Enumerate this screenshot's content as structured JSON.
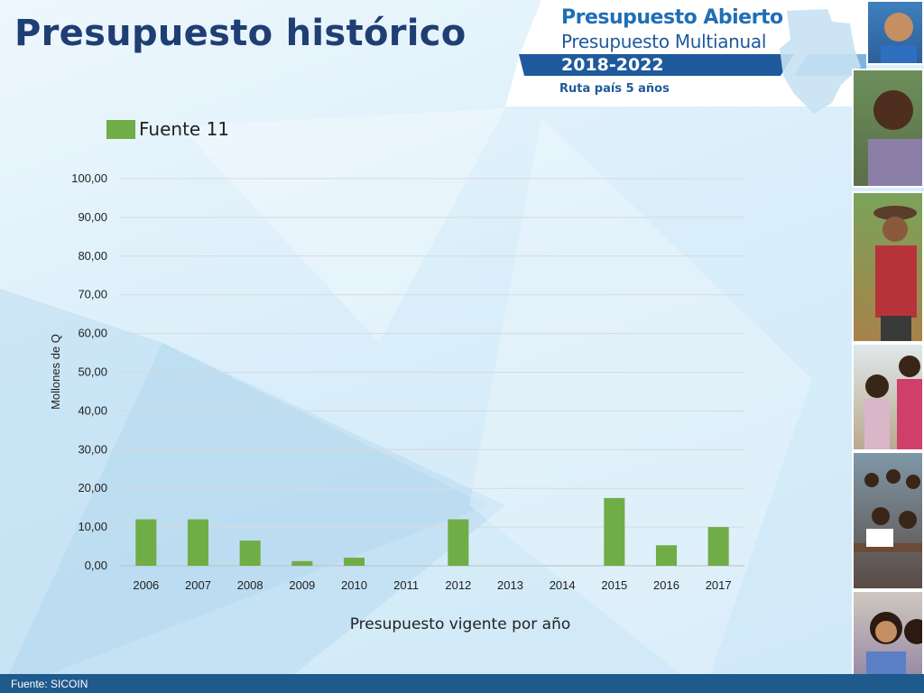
{
  "page": {
    "title": "Presupuesto histórico",
    "footer_source": "Fuente: SICOIN"
  },
  "banner": {
    "line1": "Presupuesto Abierto",
    "line2": "Presupuesto Multianual",
    "years": "2018-2022",
    "route": "Ruta país 5 años"
  },
  "colors": {
    "title": "#1f3e73",
    "bar": "#70ad47",
    "footer": "#1f5a8c",
    "banner_blue": "#1f5a9c"
  },
  "chart_data": {
    "type": "bar",
    "categories": [
      "2006",
      "2007",
      "2008",
      "2009",
      "2010",
      "2011",
      "2012",
      "2013",
      "2014",
      "2015",
      "2016",
      "2017"
    ],
    "series": [
      {
        "name": "Fuente 11",
        "values": [
          12.0,
          12.0,
          6.5,
          1.2,
          2.1,
          0,
          12.0,
          0,
          0,
          17.5,
          5.3,
          10.0
        ]
      }
    ],
    "xlabel": "Presupuesto vigente por año",
    "ylabel": "Mollones de Q",
    "ylim": [
      0,
      100
    ],
    "yticks": [
      0,
      10,
      20,
      30,
      40,
      50,
      60,
      70,
      80,
      90,
      100
    ],
    "ytick_labels": [
      "0,00",
      "10,00",
      "20,00",
      "30,00",
      "40,00",
      "50,00",
      "60,00",
      "70,00",
      "80,00",
      "90,00",
      "100,00"
    ],
    "grid": true,
    "legend_position": "top-left"
  }
}
